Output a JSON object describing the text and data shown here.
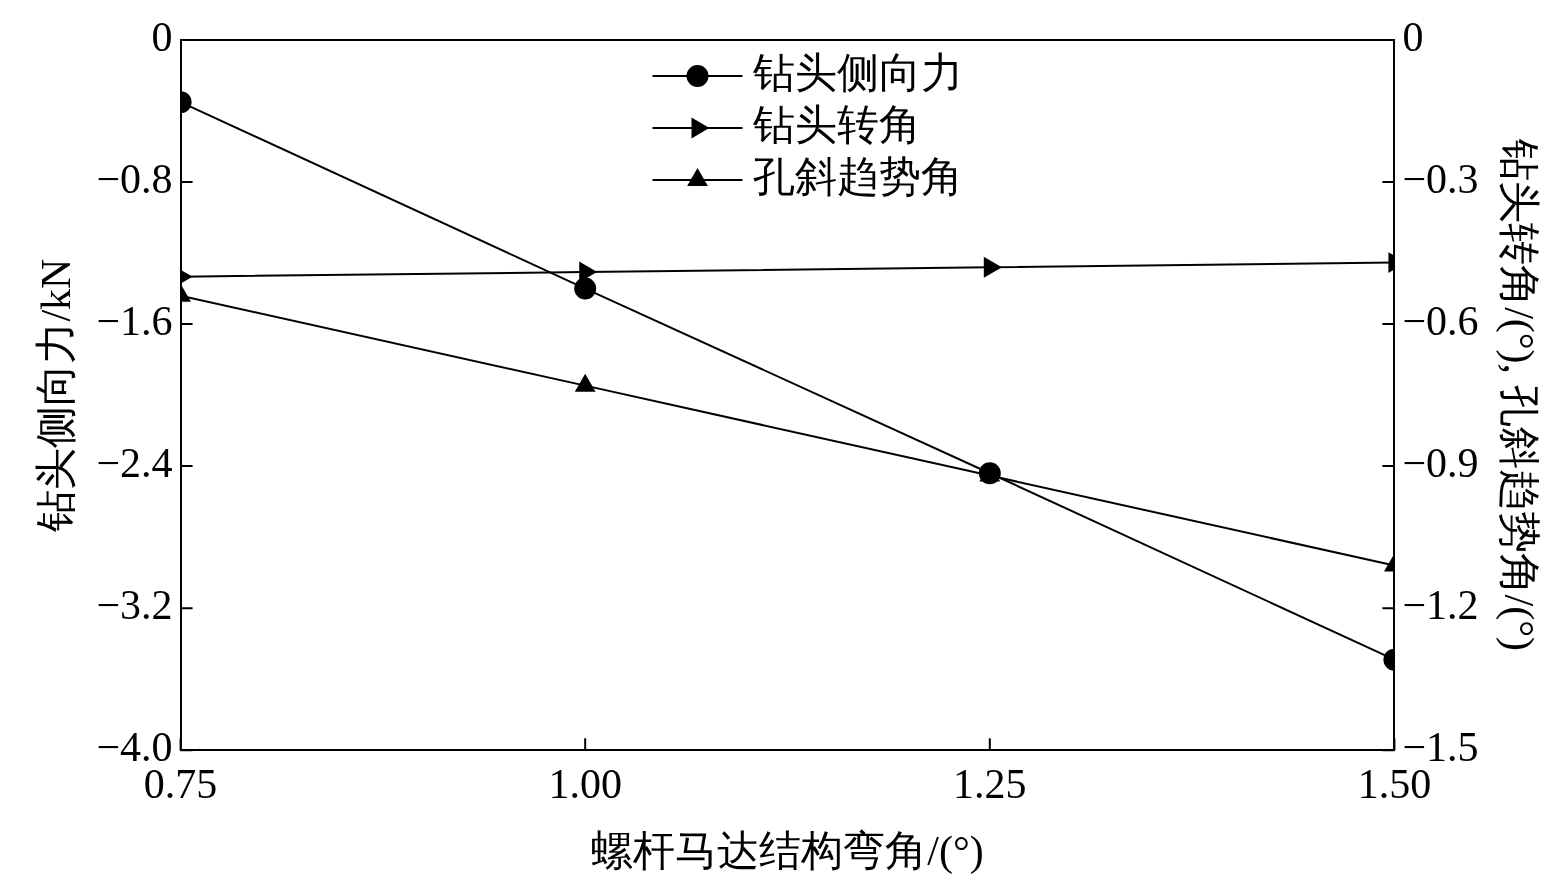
{
  "chart_data": {
    "type": "line",
    "xlabel": "螺杆马达结构弯角/(°)",
    "ylabel": "钻头侧向力/kN",
    "y2label": "钻头转角/(°), 孔斜趋势角/(°)",
    "x": [
      0.75,
      1.0,
      1.25,
      1.5
    ],
    "series": [
      {
        "name": "钻头侧向力",
        "color": "#000000",
        "marker": "circle",
        "values": [
          -0.35,
          -1.4,
          -2.44,
          -3.49
        ]
      },
      {
        "name": "钻头转角",
        "color": "#000000",
        "marker": "triangle-right",
        "axis": "y2",
        "values": [
          -0.5,
          -0.49,
          -0.48,
          -0.47
        ]
      },
      {
        "name": "孔斜趋势角",
        "color": "#000000",
        "marker": "triangle",
        "axis": "y2",
        "values": [
          -0.54,
          -0.73,
          -0.92,
          -1.11
        ]
      }
    ],
    "xlim": [
      0.75,
      1.5
    ],
    "xticks": [
      {
        "value": 0.75,
        "label": "0.75"
      },
      {
        "value": 1.0,
        "label": "1.00"
      },
      {
        "value": 1.25,
        "label": "1.25"
      },
      {
        "value": 1.5,
        "label": "1.50"
      }
    ],
    "ylim": [
      -4.0,
      0
    ],
    "yticks": [
      {
        "value": -4.0,
        "label": "−4.0"
      },
      {
        "value": -3.2,
        "label": "−3.2"
      },
      {
        "value": -2.4,
        "label": "−2.4"
      },
      {
        "value": -1.6,
        "label": "−1.6"
      },
      {
        "value": -0.8,
        "label": "−0.8"
      },
      0
    ],
    "y2lim": [
      -1.5,
      0
    ],
    "y2ticks": [
      {
        "value": -1.5,
        "label": "−1.5"
      },
      {
        "value": -1.2,
        "label": "−1.2"
      },
      {
        "value": -0.9,
        "label": "−0.9"
      },
      {
        "value": -0.6,
        "label": "−0.6"
      },
      {
        "value": -0.3,
        "label": "−0.3"
      },
      0
    ],
    "legend": "top",
    "grid": false,
    "line_style": "solid"
  }
}
